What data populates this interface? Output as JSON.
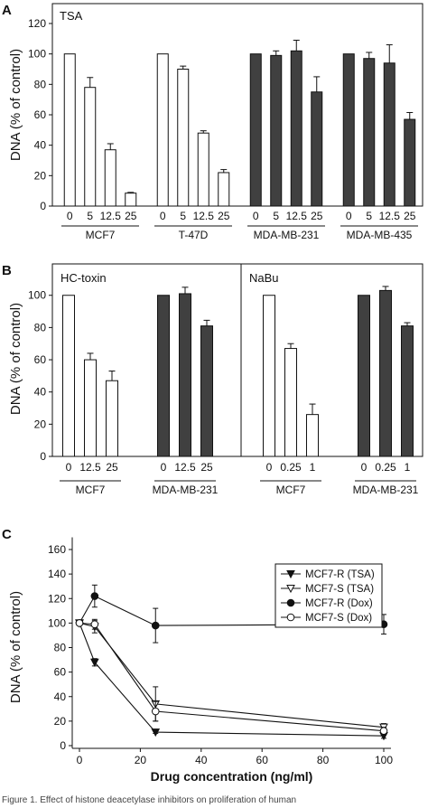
{
  "figure": {
    "footer_caption": "Figure 1. Effect of histone deacetylase inhibitors on proliferation of human"
  },
  "chart_data": [
    {
      "panel_label": "A",
      "type": "bar",
      "title": "TSA",
      "ylabel": "DNA  (% of control)",
      "ylim": [
        0,
        120
      ],
      "yticks": [
        0,
        20,
        40,
        60,
        80,
        100,
        120
      ],
      "grid": false,
      "colors": {
        "white": "#ffffff",
        "dark": "#404040"
      },
      "groups": [
        {
          "name": "MCF7",
          "fill": "white",
          "categories": [
            "0",
            "5",
            "12.5",
            "25"
          ],
          "values": [
            100,
            78,
            37,
            8.5
          ],
          "errors": [
            0,
            6.5,
            4,
            0.5
          ]
        },
        {
          "name": "T-47D",
          "fill": "white",
          "categories": [
            "0",
            "5",
            "12.5",
            "25"
          ],
          "values": [
            100,
            90,
            48,
            22
          ],
          "errors": [
            0,
            2,
            1.5,
            2
          ]
        },
        {
          "name": "MDA-MB-231",
          "fill": "dark",
          "categories": [
            "0",
            "5",
            "12.5",
            "25"
          ],
          "values": [
            100,
            99,
            102,
            75
          ],
          "errors": [
            0,
            3,
            7,
            10
          ]
        },
        {
          "name": "MDA-MB-435",
          "fill": "dark",
          "categories": [
            "0",
            "5",
            "12.5",
            "25"
          ],
          "values": [
            100,
            97,
            94,
            57
          ],
          "errors": [
            0,
            4,
            12,
            4.5
          ]
        }
      ]
    },
    {
      "panel_label": "B",
      "type": "bar",
      "ylabel": "DNA  (% of control)",
      "ylim": [
        0,
        115
      ],
      "yticks": [
        0,
        20,
        40,
        60,
        80,
        100
      ],
      "grid": false,
      "colors": {
        "white": "#ffffff",
        "dark": "#404040"
      },
      "subpanels": [
        {
          "title": "HC-toxin",
          "groups": [
            {
              "name": "MCF7",
              "fill": "white",
              "categories": [
                "0",
                "12.5",
                "25"
              ],
              "values": [
                100,
                60,
                47
              ],
              "errors": [
                0,
                4,
                6
              ]
            },
            {
              "name": "MDA-MB-231",
              "fill": "dark",
              "categories": [
                "0",
                "12.5",
                "25"
              ],
              "values": [
                100,
                101,
                81
              ],
              "errors": [
                0,
                4,
                3.5
              ]
            }
          ]
        },
        {
          "title": "NaBu",
          "groups": [
            {
              "name": "MCF7",
              "fill": "white",
              "categories": [
                "0",
                "0.25",
                "1"
              ],
              "values": [
                100,
                67,
                26
              ],
              "errors": [
                0,
                3,
                6.5
              ]
            },
            {
              "name": "MDA-MB-231",
              "fill": "dark",
              "categories": [
                "0",
                "0.25",
                "1"
              ],
              "values": [
                100,
                103,
                81
              ],
              "errors": [
                0,
                2.5,
                2
              ]
            }
          ]
        }
      ]
    },
    {
      "panel_label": "C",
      "type": "line",
      "xlabel": "Drug concentration (ng/ml)",
      "ylabel": "DNA  (% of control)",
      "xlim": [
        -2,
        105
      ],
      "ylim": [
        0,
        170
      ],
      "xticks": [
        0,
        20,
        40,
        60,
        80,
        100
      ],
      "yticks": [
        0,
        20,
        40,
        60,
        80,
        100,
        120,
        140,
        160
      ],
      "grid": false,
      "legend": "top-right",
      "x": [
        0,
        5,
        25,
        100
      ],
      "series": [
        {
          "name": "MCF7-R (TSA)",
          "marker": "triangle-down-filled",
          "values": [
            100,
            68,
            11,
            8
          ],
          "errors": [
            0,
            3,
            1,
            2
          ]
        },
        {
          "name": "MCF7-S (TSA)",
          "marker": "triangle-down-open",
          "values": [
            100,
            97,
            34,
            15
          ],
          "errors": [
            0,
            5,
            14,
            3
          ]
        },
        {
          "name": "MCF7-R (Dox)",
          "marker": "circle-filled",
          "values": [
            100,
            122,
            98,
            99
          ],
          "errors": [
            0,
            9,
            14,
            8
          ]
        },
        {
          "name": "MCF7-S (Dox)",
          "marker": "circle-open",
          "values": [
            100,
            99,
            28,
            12
          ],
          "errors": [
            0,
            4,
            8,
            3
          ]
        }
      ]
    }
  ]
}
